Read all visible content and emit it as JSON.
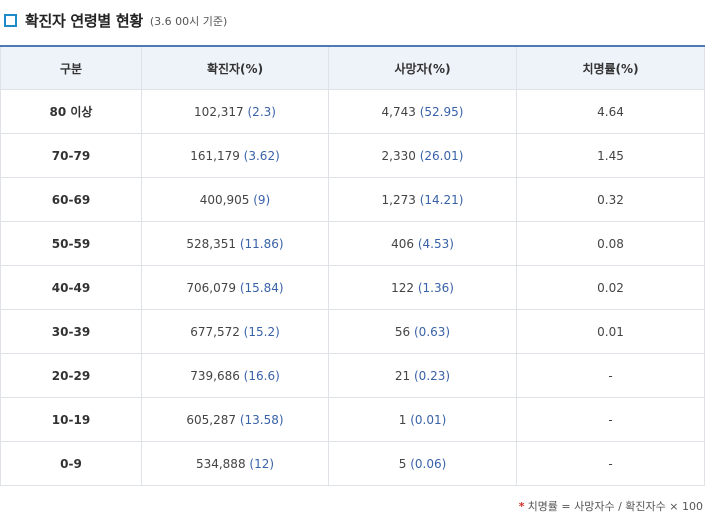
{
  "heading": {
    "title": "확진자 연령별 현황",
    "subtitle": "(3.6 00시 기준)"
  },
  "table": {
    "columns": [
      "구분",
      "확진자(%)",
      "사망자(%)",
      "치명률(%)"
    ],
    "rows": [
      {
        "group": "80 이상",
        "confirmed": "102,317",
        "confirmed_pct": "(2.3)",
        "deaths": "4,743",
        "deaths_pct": "(52.95)",
        "fatality": "4.64"
      },
      {
        "group": "70-79",
        "confirmed": "161,179",
        "confirmed_pct": "(3.62)",
        "deaths": "2,330",
        "deaths_pct": "(26.01)",
        "fatality": "1.45"
      },
      {
        "group": "60-69",
        "confirmed": "400,905",
        "confirmed_pct": "(9)",
        "deaths": "1,273",
        "deaths_pct": "(14.21)",
        "fatality": "0.32"
      },
      {
        "group": "50-59",
        "confirmed": "528,351",
        "confirmed_pct": "(11.86)",
        "deaths": "406",
        "deaths_pct": "(4.53)",
        "fatality": "0.08"
      },
      {
        "group": "40-49",
        "confirmed": "706,079",
        "confirmed_pct": "(15.84)",
        "deaths": "122",
        "deaths_pct": "(1.36)",
        "fatality": "0.02"
      },
      {
        "group": "30-39",
        "confirmed": "677,572",
        "confirmed_pct": "(15.2)",
        "deaths": "56",
        "deaths_pct": "(0.63)",
        "fatality": "0.01"
      },
      {
        "group": "20-29",
        "confirmed": "739,686",
        "confirmed_pct": "(16.6)",
        "deaths": "21",
        "deaths_pct": "(0.23)",
        "fatality": "-"
      },
      {
        "group": "10-19",
        "confirmed": "605,287",
        "confirmed_pct": "(13.58)",
        "deaths": "1",
        "deaths_pct": "(0.01)",
        "fatality": "-"
      },
      {
        "group": "0-9",
        "confirmed": "534,888",
        "confirmed_pct": "(12)",
        "deaths": "5",
        "deaths_pct": "(0.06)",
        "fatality": "-"
      }
    ]
  },
  "footnote": {
    "star": "*",
    "text": "치명률 = 사망자수 / 확진자수 × 100"
  },
  "colors": {
    "accent": "#1f8ac9",
    "header_bg": "#eef3f9",
    "header_border": "#4f79b2",
    "value_blue": "#3a62a8",
    "footnote_star": "#d0302a"
  },
  "icons": {
    "heading_icon": "square-outline-icon"
  }
}
